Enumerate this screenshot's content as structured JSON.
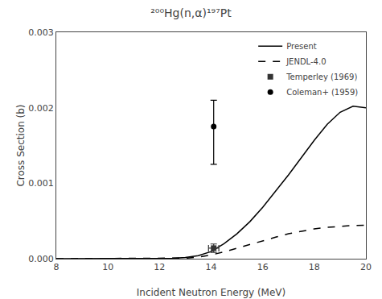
{
  "chart_data": {
    "type": "line",
    "title": "²⁰⁰Hg(n,α)¹⁹⁷Pt",
    "xlabel": "Incident Neutron Energy (MeV)",
    "ylabel": "Cross Section (b)",
    "xlim": [
      8,
      20
    ],
    "ylim": [
      0,
      0.003
    ],
    "xticks": [
      8,
      10,
      12,
      14,
      16,
      18,
      20
    ],
    "yticks": [
      {
        "value": 0,
        "label": "0.000"
      },
      0.001,
      0.002,
      0.003
    ],
    "grid": false,
    "legend": "upper right",
    "series": [
      {
        "name": "Present",
        "type": "line",
        "line_style": "solid",
        "color": "#000000",
        "x": [
          8.0,
          9.0,
          10.0,
          11.0,
          12.0,
          12.5,
          13.0,
          13.5,
          14.0,
          14.5,
          15.0,
          15.5,
          16.0,
          16.5,
          17.0,
          17.5,
          18.0,
          18.5,
          19.0,
          19.5,
          20.0
        ],
        "values": [
          0.0,
          0.0,
          0.0,
          0.0,
          2e-06,
          6e-06,
          1.5e-05,
          4e-05,
          9.5e-05,
          0.0002,
          0.00033,
          0.00049,
          0.00068,
          0.00089,
          0.00111,
          0.00134,
          0.00157,
          0.00178,
          0.00194,
          0.00202,
          0.002
        ]
      },
      {
        "name": "JENDL-4.0",
        "type": "line",
        "line_style": "dashed",
        "color": "#000000",
        "x": [
          8.0,
          9.0,
          10.0,
          11.0,
          12.0,
          12.5,
          13.0,
          13.5,
          14.0,
          14.5,
          15.0,
          15.5,
          16.0,
          16.5,
          17.0,
          17.5,
          18.0,
          18.5,
          19.0,
          19.5,
          20.0
        ],
        "values": [
          0.0,
          0.0,
          0.0,
          0.0,
          1e-06,
          3e-06,
          8e-06,
          2e-05,
          5e-05,
          9e-05,
          0.00014,
          0.00019,
          0.00024,
          0.000285,
          0.00033,
          0.000365,
          0.000395,
          0.000415,
          0.00043,
          0.00044,
          0.000445
        ]
      },
      {
        "name": "Temperley (1969)",
        "type": "scatter",
        "marker": "square",
        "color": "#333333",
        "x": [
          14.1
        ],
        "values": [
          0.00014
        ],
        "error_low": [
          5.5e-05
        ],
        "error_high": [
          5.5e-05
        ],
        "xerr": [
          0.2
        ]
      },
      {
        "name": "Coleman+ (1959)",
        "type": "scatter",
        "marker": "circle",
        "color": "#000000",
        "x": [
          14.1
        ],
        "values": [
          0.00175
        ],
        "error_low": [
          0.0005
        ],
        "error_high": [
          0.00035
        ]
      }
    ]
  }
}
